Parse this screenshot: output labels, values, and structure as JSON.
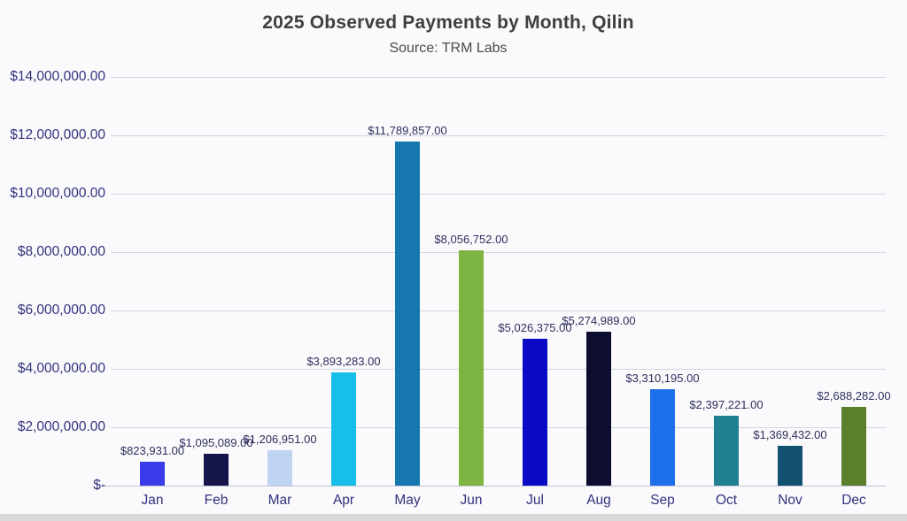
{
  "page": {
    "background_color": "#fafafc",
    "bottom_strip_color": "#d9d9db"
  },
  "style": {
    "title_color": "#3f3f3f",
    "subtitle_color": "#4b4b4b",
    "axis_text_color": "#32327e",
    "value_label_color": "#2e2e5e",
    "grid_color": "#d5d5e2",
    "baseline_color": "#c4c4d6"
  },
  "chart_data": {
    "type": "bar",
    "title": "2025 Observed Payments by Month, Qilin",
    "subtitle": "Source: TRM Labs",
    "xlabel": "",
    "ylabel": "",
    "ylim": [
      0,
      14000000
    ],
    "grid": true,
    "legend": false,
    "categories": [
      "Jan",
      "Feb",
      "Mar",
      "Apr",
      "May",
      "Jun",
      "Jul",
      "Aug",
      "Sep",
      "Oct",
      "Nov",
      "Dec"
    ],
    "values": [
      823931,
      1095089,
      1206951,
      3893283,
      11789857,
      8056752,
      5026375,
      5274989,
      3310195,
      2397221,
      1369432,
      2688282
    ],
    "value_labels": [
      "$823,931.00",
      "$1,095,089.00",
      "$1,206,951.00",
      "$3,893,283.00",
      "$11,789,857.00",
      "$8,056,752.00",
      "$5,026,375.00",
      "$5,274,989.00",
      "$3,310,195.00",
      "$2,397,221.00",
      "$1,369,432.00",
      "$2,688,282.00"
    ],
    "bar_colors": [
      "#3a3ae8",
      "#15154b",
      "#bfd4f2",
      "#16bee9",
      "#1577ae",
      "#7eb442",
      "#0a0ac4",
      "#0d0d30",
      "#1d6fea",
      "#20808f",
      "#125070",
      "#5c7f2e"
    ],
    "y_ticks": [
      {
        "value": 0,
        "label": "$-"
      },
      {
        "value": 2000000,
        "label": "$2,000,000.00"
      },
      {
        "value": 4000000,
        "label": "$4,000,000.00"
      },
      {
        "value": 6000000,
        "label": "$6,000,000.00"
      },
      {
        "value": 8000000,
        "label": "$8,000,000.00"
      },
      {
        "value": 10000000,
        "label": "$10,000,000.00"
      },
      {
        "value": 12000000,
        "label": "$12,000,000.00"
      },
      {
        "value": 14000000,
        "label": "$14,000,000.00"
      }
    ]
  }
}
